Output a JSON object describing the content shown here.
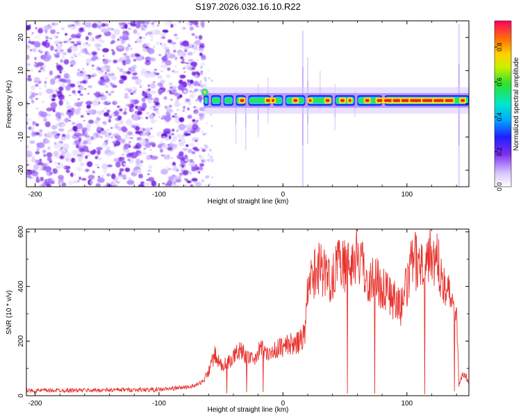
{
  "title": "S197.2026.032.16.10.R22",
  "colors": {
    "line": "#e8322d",
    "axis": "#000000",
    "background": "#ffffff"
  },
  "chart_data": [
    {
      "type": "heatmap",
      "xlabel": "Height of straight line (km)",
      "ylabel": "Frequency (Hz)",
      "xlim": [
        -207,
        150
      ],
      "ylim": [
        -25,
        25
      ],
      "x_ticks": [
        -200,
        -100,
        0,
        100
      ],
      "y_ticks": [
        -20,
        -10,
        0,
        10,
        20
      ],
      "noise_region_x": [
        -207,
        -67
      ],
      "signal_band_center_hz": 1,
      "colorbar": {
        "label": "Normalized spectral amplitude",
        "range": [
          0.0,
          0.95
        ],
        "ticks": [
          "0.0",
          "0.2",
          "0.4",
          "0.6",
          "0.8"
        ],
        "tick_values": [
          0.0,
          0.2,
          0.4,
          0.6,
          0.8
        ]
      }
    },
    {
      "type": "line",
      "xlabel": "Height of straight line (km)",
      "ylabel": "SNR (10 * v/v)",
      "xlim": [
        -207,
        150
      ],
      "ylim": [
        0,
        610
      ],
      "x_ticks": [
        -200,
        -100,
        0,
        100
      ],
      "y_ticks": [
        0,
        200,
        400,
        600
      ],
      "series": [
        {
          "name": "SNR",
          "x": [
            -207,
            -180,
            -150,
            -120,
            -100,
            -85,
            -72,
            -65,
            -60,
            -55,
            -50,
            -45,
            -40,
            -35,
            -30,
            -25,
            -20,
            -15,
            -10,
            -5,
            0,
            5,
            10,
            15,
            18,
            20,
            25,
            30,
            35,
            40,
            45,
            50,
            55,
            60,
            65,
            70,
            75,
            80,
            85,
            90,
            95,
            100,
            105,
            110,
            115,
            120,
            125,
            130,
            135,
            140,
            142,
            145,
            150
          ],
          "values": [
            18,
            20,
            20,
            22,
            22,
            28,
            35,
            50,
            90,
            150,
            110,
            120,
            140,
            170,
            150,
            130,
            160,
            180,
            150,
            170,
            180,
            190,
            185,
            210,
            230,
            380,
            450,
            480,
            430,
            440,
            520,
            470,
            480,
            530,
            460,
            420,
            430,
            400,
            380,
            350,
            320,
            400,
            500,
            480,
            510,
            530,
            480,
            430,
            350,
            320,
            40,
            90,
            50
          ]
        }
      ]
    }
  ]
}
